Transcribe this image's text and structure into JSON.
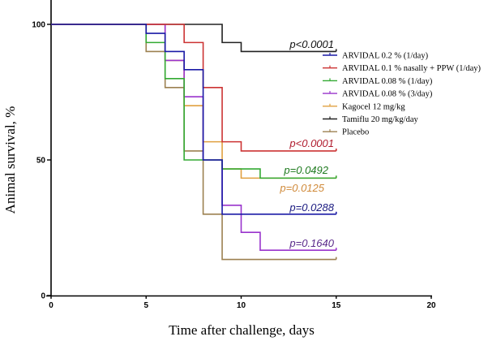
{
  "chart_data": {
    "type": "line",
    "subtype": "kaplan-meier step",
    "title": "",
    "xlabel": "Time after challenge, days",
    "ylabel": "Animal survival, %",
    "xlim": [
      0,
      20
    ],
    "ylim": [
      0,
      100
    ],
    "xticks": [
      0,
      5,
      10,
      15,
      20
    ],
    "yticks": [
      0,
      50,
      100
    ],
    "grid": false,
    "legend_position": "right",
    "series": [
      {
        "name": "ARVIDAL 0.2 % (1/day)",
        "color": "#1a1aa6",
        "steps": [
          [
            0,
            100
          ],
          [
            5,
            96.7
          ],
          [
            6,
            90
          ],
          [
            7,
            83.3
          ],
          [
            8,
            50
          ],
          [
            9,
            30
          ],
          [
            15,
            30
          ]
        ],
        "annotation": "p=0.0288",
        "annotation_color": "#1a1a80"
      },
      {
        "name": "ARVIDAL 0.1 % nasally + PPW (1/day)",
        "color": "#cc3333",
        "steps": [
          [
            0,
            100
          ],
          [
            7,
            93.3
          ],
          [
            8,
            76.7
          ],
          [
            9,
            56.7
          ],
          [
            10,
            53.3
          ],
          [
            15,
            53.3
          ]
        ],
        "annotation": "p<0.0001",
        "annotation_color": "#b01c2e"
      },
      {
        "name": "ARVIDAL 0.08 % (1/day)",
        "color": "#33aa33",
        "steps": [
          [
            0,
            100
          ],
          [
            5,
            93.3
          ],
          [
            6,
            80
          ],
          [
            7,
            50
          ],
          [
            9,
            46.7
          ],
          [
            11,
            43.3
          ],
          [
            15,
            43.3
          ]
        ],
        "annotation": "p=0.0492",
        "annotation_color": "#1e7a1e"
      },
      {
        "name": "ARVIDAL 0.08 % (3/day)",
        "color": "#9933cc",
        "steps": [
          [
            0,
            100
          ],
          [
            6,
            86.7
          ],
          [
            7,
            73.3
          ],
          [
            8,
            50
          ],
          [
            9,
            33.3
          ],
          [
            10,
            23.3
          ],
          [
            11,
            16.7
          ],
          [
            15,
            16.7
          ]
        ],
        "annotation": "p=0.1640",
        "annotation_color": "#5a2a8a"
      },
      {
        "name": "Kagocel 12 mg/kg",
        "color": "#e0a040",
        "steps": [
          [
            0,
            100
          ],
          [
            6,
            86.7
          ],
          [
            7,
            70
          ],
          [
            8,
            56.7
          ],
          [
            9,
            46.7
          ],
          [
            10,
            43.3
          ],
          [
            15,
            43.3
          ]
        ],
        "annotation": "p=0.0125",
        "annotation_color": "#d08a3a"
      },
      {
        "name": "Tamiflu 20 mg/kg/day",
        "color": "#222222",
        "steps": [
          [
            0,
            100
          ],
          [
            9,
            93.3
          ],
          [
            10,
            90
          ],
          [
            15,
            90
          ]
        ],
        "annotation": "p<0.0001",
        "annotation_color": "#111111"
      },
      {
        "name": "Placebo",
        "color": "#9c8050",
        "steps": [
          [
            0,
            100
          ],
          [
            5,
            90
          ],
          [
            6,
            76.7
          ],
          [
            7,
            53.3
          ],
          [
            8,
            30
          ],
          [
            9,
            13.3
          ],
          [
            15,
            13.3
          ]
        ],
        "annotation": "",
        "annotation_color": ""
      }
    ]
  }
}
